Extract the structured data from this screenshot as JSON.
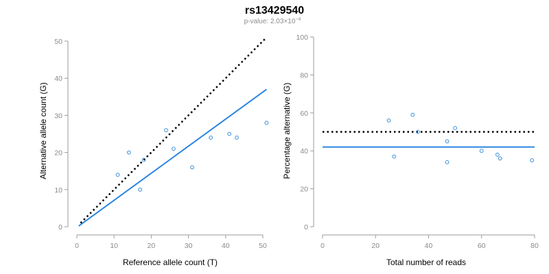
{
  "header": {
    "title": "rs13429540",
    "subtitle": "p-value: 2.03×10",
    "subtitle_exponent": "−4"
  },
  "colors": {
    "points": "#3a8fd9",
    "fit": "#2a86e0",
    "reference": "#000000",
    "axis": "#9a9a9a"
  },
  "chart_data": [
    {
      "type": "scatter",
      "xlabel": "Reference allele count (T)",
      "ylabel": "Alternative allele count (G)",
      "xlim": [
        0,
        50
      ],
      "ylim": [
        0,
        50
      ],
      "xticks": [
        0,
        10,
        20,
        30,
        40,
        50
      ],
      "yticks": [
        0,
        10,
        20,
        30,
        40,
        50
      ],
      "grid": false,
      "points": [
        {
          "x": 11,
          "y": 14
        },
        {
          "x": 14,
          "y": 20
        },
        {
          "x": 17,
          "y": 10
        },
        {
          "x": 18,
          "y": 18
        },
        {
          "x": 24,
          "y": 26
        },
        {
          "x": 26,
          "y": 21
        },
        {
          "x": 31,
          "y": 16
        },
        {
          "x": 36,
          "y": 24
        },
        {
          "x": 41,
          "y": 25
        },
        {
          "x": 43,
          "y": 24
        },
        {
          "x": 51,
          "y": 28
        }
      ],
      "reference_line": {
        "style": "dotted",
        "from": [
          1,
          1
        ],
        "to": [
          51,
          51
        ]
      },
      "fit_line": {
        "style": "solid",
        "from": [
          0.5,
          0.2
        ],
        "to": [
          51,
          37
        ]
      }
    },
    {
      "type": "scatter",
      "xlabel": "Total number of reads",
      "ylabel": "Percentage alternative (G)",
      "xlim": [
        0,
        80
      ],
      "ylim": [
        0,
        100
      ],
      "xticks": [
        0,
        20,
        40,
        60,
        80
      ],
      "yticks": [
        0,
        20,
        40,
        60,
        80,
        100
      ],
      "grid": false,
      "points": [
        {
          "x": 25,
          "y": 56
        },
        {
          "x": 27,
          "y": 37
        },
        {
          "x": 34,
          "y": 59
        },
        {
          "x": 36,
          "y": 50
        },
        {
          "x": 47,
          "y": 45
        },
        {
          "x": 47,
          "y": 34
        },
        {
          "x": 50,
          "y": 52
        },
        {
          "x": 60,
          "y": 40
        },
        {
          "x": 66,
          "y": 38
        },
        {
          "x": 67,
          "y": 36
        },
        {
          "x": 79,
          "y": 35
        }
      ],
      "reference_line": {
        "style": "dotted",
        "from": [
          0,
          50
        ],
        "to": [
          80,
          50
        ]
      },
      "fit_line": {
        "style": "solid",
        "from": [
          0,
          42
        ],
        "to": [
          80,
          42
        ]
      }
    }
  ]
}
